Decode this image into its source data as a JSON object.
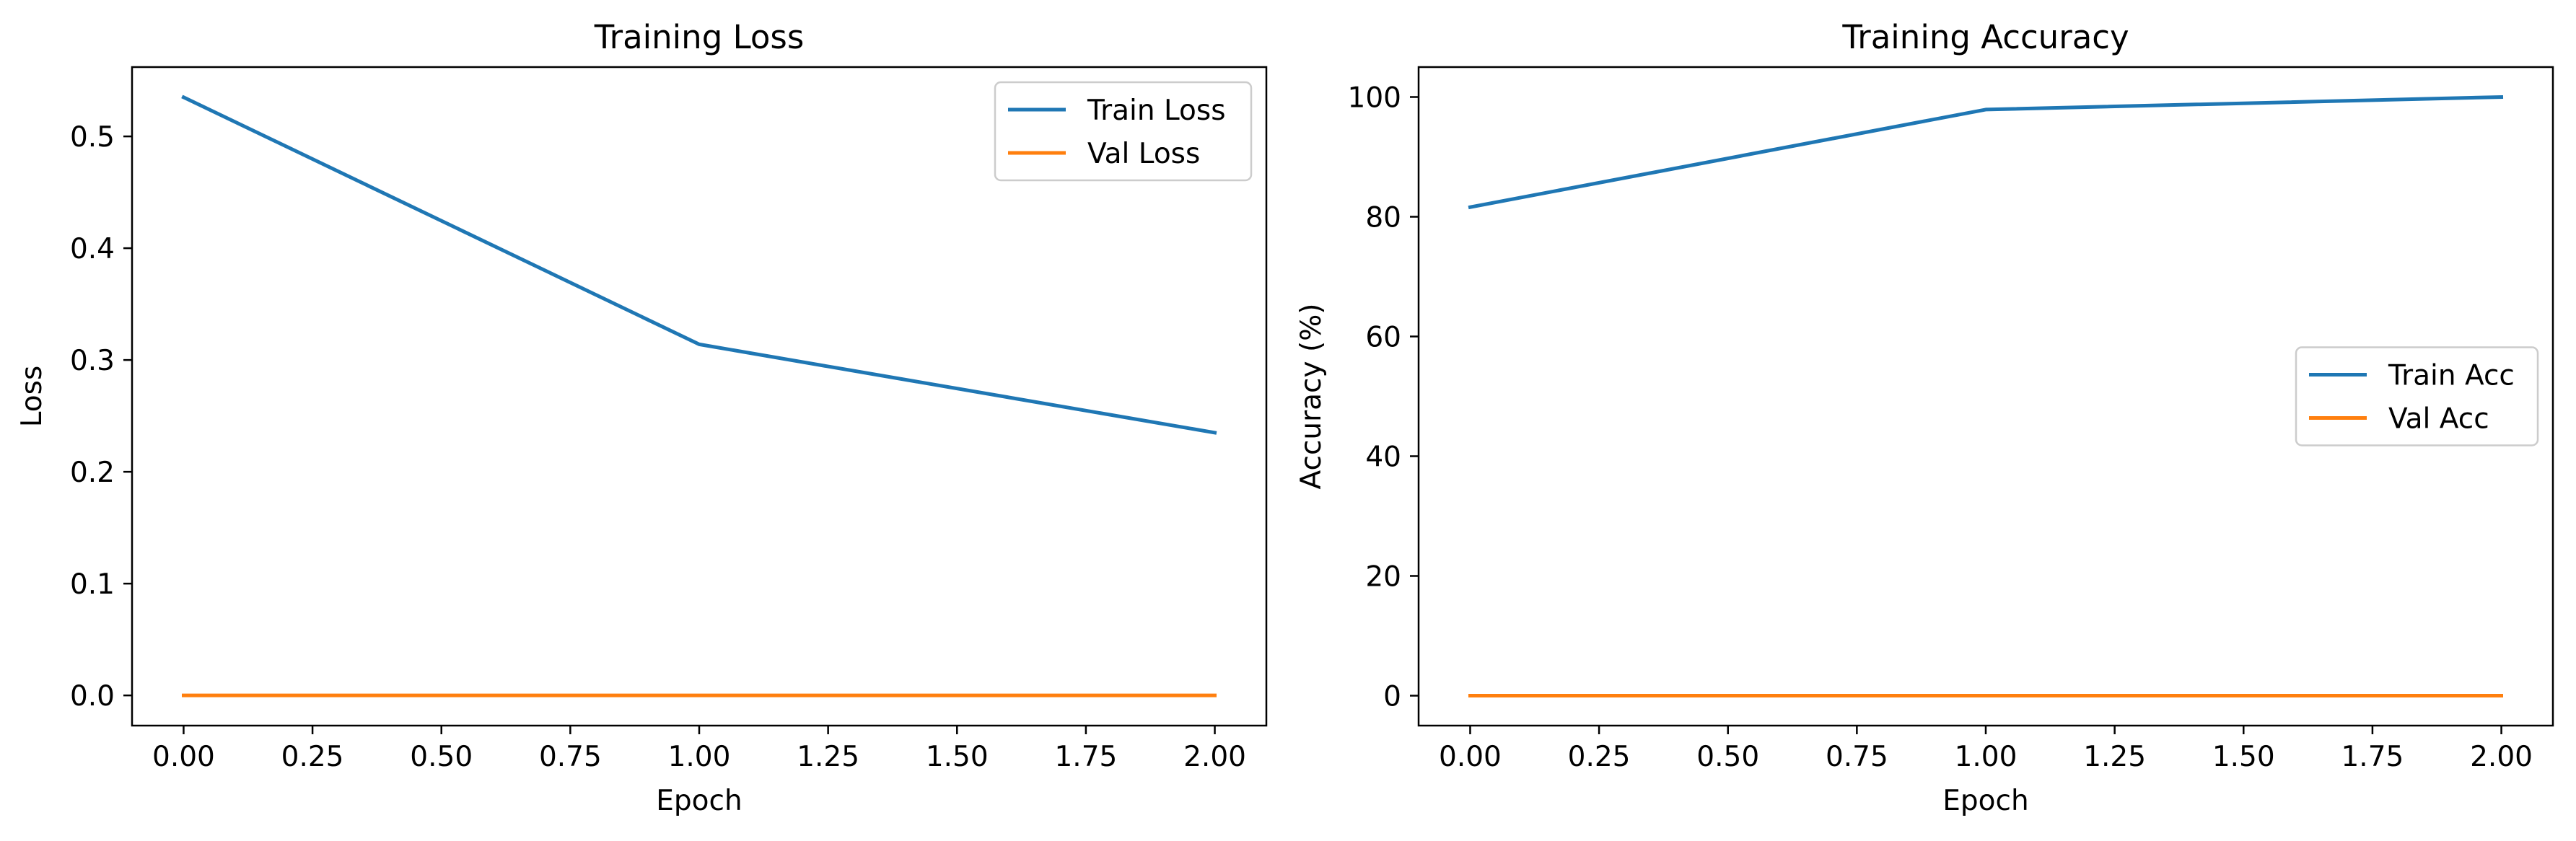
{
  "chart_data": [
    {
      "type": "line",
      "title": "Training Loss",
      "xlabel": "Epoch",
      "ylabel": "Loss",
      "xlim": [
        -0.1,
        2.1
      ],
      "ylim": [
        -0.027,
        0.562
      ],
      "xticks": [
        0.0,
        0.25,
        0.5,
        0.75,
        1.0,
        1.25,
        1.5,
        1.75,
        2.0
      ],
      "xtick_labels": [
        "0.00",
        "0.25",
        "0.50",
        "0.75",
        "1.00",
        "1.25",
        "1.50",
        "1.75",
        "2.00"
      ],
      "yticks": [
        0.0,
        0.1,
        0.2,
        0.3,
        0.4,
        0.5
      ],
      "ytick_labels": [
        "0.0",
        "0.1",
        "0.2",
        "0.3",
        "0.4",
        "0.5"
      ],
      "x": [
        0,
        1,
        2
      ],
      "series": [
        {
          "name": "Train Loss",
          "color": "#1f77b4",
          "values": [
            0.535,
            0.314,
            0.235
          ]
        },
        {
          "name": "Val Loss",
          "color": "#ff7f0e",
          "values": [
            0.0,
            0.0,
            0.0
          ]
        }
      ],
      "legend": "upper right",
      "grid": false
    },
    {
      "type": "line",
      "title": "Training Accuracy",
      "xlabel": "Epoch",
      "ylabel": "Accuracy (%)",
      "xlim": [
        -0.1,
        2.1
      ],
      "ylim": [
        -5,
        105
      ],
      "xticks": [
        0.0,
        0.25,
        0.5,
        0.75,
        1.0,
        1.25,
        1.5,
        1.75,
        2.0
      ],
      "xtick_labels": [
        "0.00",
        "0.25",
        "0.50",
        "0.75",
        "1.00",
        "1.25",
        "1.50",
        "1.75",
        "2.00"
      ],
      "yticks": [
        0,
        20,
        40,
        60,
        80,
        100
      ],
      "ytick_labels": [
        "0",
        "20",
        "40",
        "60",
        "80",
        "100"
      ],
      "x": [
        0,
        1,
        2
      ],
      "series": [
        {
          "name": "Train Acc",
          "color": "#1f77b4",
          "values": [
            81.6,
            97.9,
            100.0
          ]
        },
        {
          "name": "Val Acc",
          "color": "#ff7f0e",
          "values": [
            0.0,
            0.0,
            0.0
          ]
        }
      ],
      "legend": "center right",
      "grid": false
    }
  ]
}
